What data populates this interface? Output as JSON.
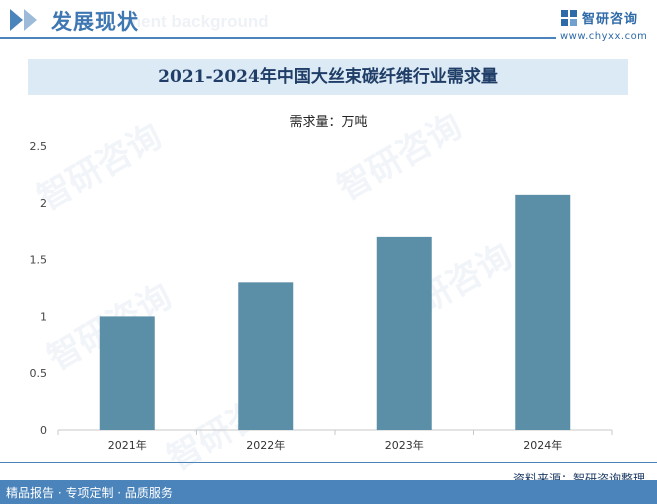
{
  "header": {
    "section_title": "发展现状",
    "background_text": "ment background",
    "brand_name": "智研咨询",
    "brand_url": "www.chyxx.com",
    "logo_icon": "chyxx-logo-icon"
  },
  "watermark": "智研咨询",
  "colors": {
    "accent": "#4b84bb",
    "bar": "#5b8fa8",
    "title_band": "#dceaf5",
    "title_text": "#1f3d66"
  },
  "chart_data": {
    "type": "bar",
    "title": "2021-2024年中国大丝束碳纤维行业需求量",
    "unit_label": "需求量：万吨",
    "categories": [
      "2021年",
      "2022年",
      "2023年",
      "2024年"
    ],
    "values": [
      1.0,
      1.3,
      1.7,
      2.07
    ],
    "ylim": [
      0,
      2.5
    ],
    "yticks": [
      "0",
      "0.5",
      "1",
      "1.5",
      "2",
      "2.5"
    ],
    "grid": false,
    "legend": "none"
  },
  "footer": {
    "source": "资料来源：智研咨询整理",
    "tagline": "精品报告 · 专项定制 · 品质服务"
  }
}
